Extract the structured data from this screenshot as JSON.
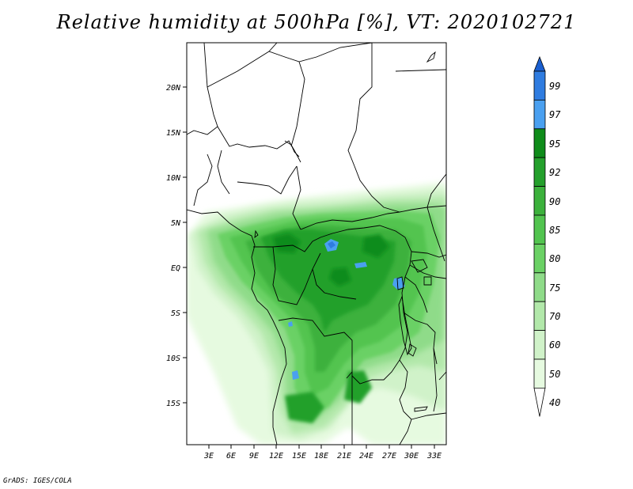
{
  "title": "Relative humidity at 500hPa [%], VT: 2020102721",
  "credit": "GrADS: IGES/COLA",
  "map": {
    "lat_labels": [
      "20N",
      "15N",
      "10N",
      "5N",
      "EQ",
      "5S",
      "10S",
      "15S"
    ],
    "lon_labels": [
      "3E",
      "6E",
      "9E",
      "12E",
      "15E",
      "18E",
      "21E",
      "24E",
      "27E",
      "30E",
      "33E"
    ],
    "lon_range": [
      0,
      34.5
    ],
    "lat_range": [
      -20,
      24.5
    ]
  },
  "colorbar": {
    "labels": [
      "99",
      "97",
      "95",
      "92",
      "90",
      "85",
      "80",
      "75",
      "70",
      "60",
      "50",
      "40"
    ],
    "colors": [
      "#1a5fd0",
      "#2f7ce0",
      "#4aa0f0",
      "#0f8c1a",
      "#24a02c",
      "#3cb13c",
      "#52c44f",
      "#6bd165",
      "#8fdb89",
      "#b2e8aa",
      "#d0f2c9",
      "#e6fae0",
      "#ffffff"
    ]
  }
}
